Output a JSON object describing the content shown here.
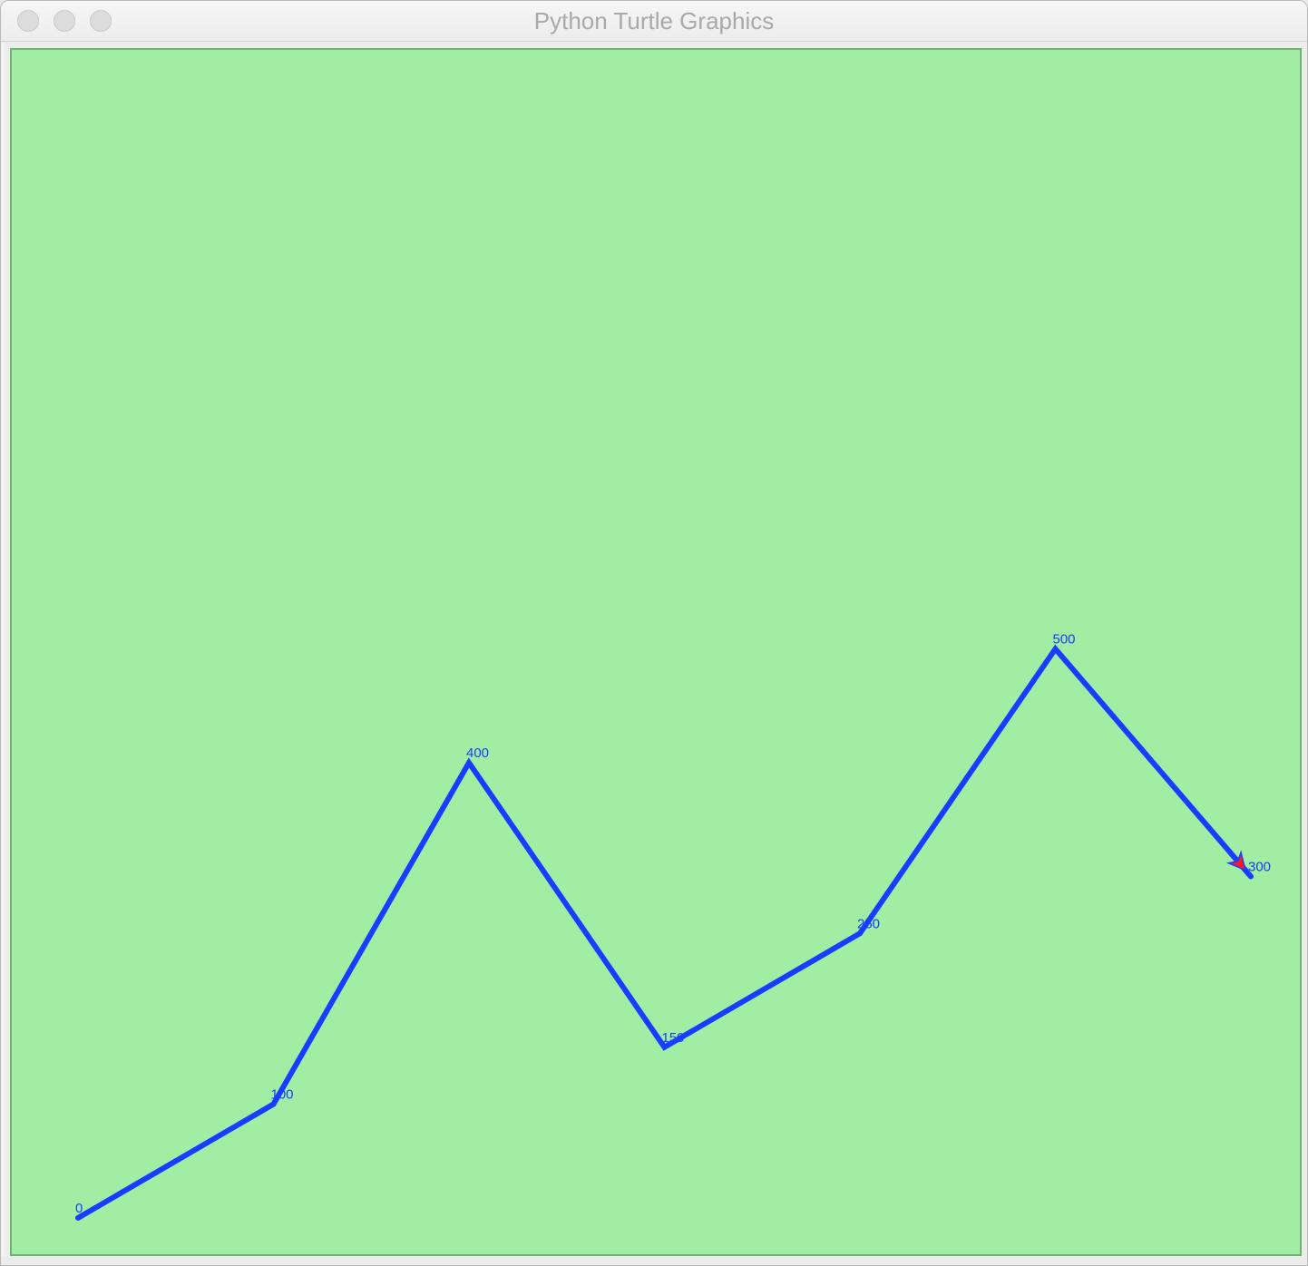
{
  "window": {
    "title": "Python Turtle Graphics"
  },
  "colors": {
    "canvas_background": "#a2eda4",
    "line": "#1a3cff",
    "label": "#1a3cff",
    "turtle_cursor": "#ff1a1a"
  },
  "icons": {
    "close": "close-button",
    "minimize": "minimize-button",
    "zoom": "zoom-button",
    "turtle": "turtle-arrow-icon"
  },
  "chart_data": {
    "type": "line",
    "values": [
      0,
      100,
      400,
      150,
      250,
      500,
      300
    ],
    "labels": [
      "0",
      "100",
      "400",
      "150",
      "250",
      "500",
      "300"
    ]
  }
}
